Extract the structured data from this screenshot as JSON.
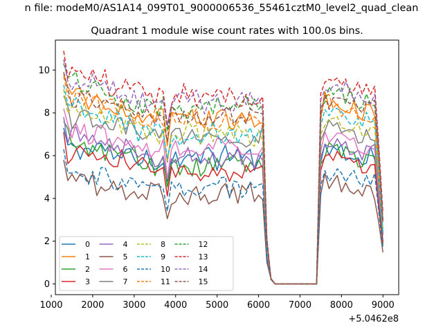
{
  "figure": {
    "suptitle": "n file: modeM0/AS1A14_099T01_9000006536_55461cztM0_level2_quad_clean",
    "offset_label": "+5.0462e8"
  },
  "chart_data": {
    "type": "line",
    "title": "Quadrant 1 module wise count rates with 100.0s bins.",
    "xlabel": "",
    "ylabel": "",
    "xlim": [
      1100,
      9380
    ],
    "ylim": [
      -0.5,
      11.4
    ],
    "x_offset": 504620000,
    "xticks": [
      1000,
      2000,
      3000,
      4000,
      5000,
      6000,
      7000,
      8000,
      9000
    ],
    "yticks": [
      0,
      2,
      4,
      6,
      8,
      10
    ],
    "xtick_labels": [
      "1000",
      "2000",
      "3000",
      "4000",
      "5000",
      "6000",
      "7000",
      "8000",
      "9000"
    ],
    "ytick_labels": [
      "0",
      "2",
      "4",
      "6",
      "8",
      "10"
    ],
    "grid": false,
    "legend": {
      "placement": "lower-left",
      "columns": 4
    },
    "series": [
      {
        "name": "0",
        "color": "#1f77b4",
        "dash": "solid",
        "level_start": 6.4,
        "level_mid": 5.9,
        "level_end": 6.0
      },
      {
        "name": "1",
        "color": "#ff7f0e",
        "dash": "solid",
        "level_start": 8.9,
        "level_mid": 7.7,
        "level_end": 8.1
      },
      {
        "name": "2",
        "color": "#2ca02c",
        "dash": "solid",
        "level_start": 6.7,
        "level_mid": 5.6,
        "level_end": 5.9
      },
      {
        "name": "3",
        "color": "#d62728",
        "dash": "solid",
        "level_start": 6.2,
        "level_mid": 5.3,
        "level_end": 5.6
      },
      {
        "name": "4",
        "color": "#9467bd",
        "dash": "solid",
        "level_start": 6.9,
        "level_mid": 6.0,
        "level_end": 6.2
      },
      {
        "name": "5",
        "color": "#8c564b",
        "dash": "solid",
        "level_start": 4.9,
        "level_mid": 4.2,
        "level_end": 4.5
      },
      {
        "name": "6",
        "color": "#e377c2",
        "dash": "solid",
        "level_start": 7.3,
        "level_mid": 6.2,
        "level_end": 6.5
      },
      {
        "name": "7",
        "color": "#7f7f7f",
        "dash": "solid",
        "level_start": 7.9,
        "level_mid": 6.8,
        "level_end": 7.0
      },
      {
        "name": "8",
        "color": "#bcbd22",
        "dash": "dashed",
        "level_start": 8.2,
        "level_mid": 7.0,
        "level_end": 7.3
      },
      {
        "name": "9",
        "color": "#17becf",
        "dash": "dashed",
        "level_start": 8.4,
        "level_mid": 7.0,
        "level_end": 7.7
      },
      {
        "name": "10",
        "color": "#1f77b4",
        "dash": "dashed",
        "level_start": 5.4,
        "level_mid": 4.6,
        "level_end": 4.9
      },
      {
        "name": "11",
        "color": "#ff7f0e",
        "dash": "dashed",
        "level_start": 8.8,
        "level_mid": 7.7,
        "level_end": 8.0
      },
      {
        "name": "12",
        "color": "#2ca02c",
        "dash": "dashed",
        "level_start": 9.4,
        "level_mid": 8.3,
        "level_end": 8.6
      },
      {
        "name": "13",
        "color": "#d62728",
        "dash": "dashed",
        "level_start": 10.0,
        "level_mid": 8.7,
        "level_end": 9.2
      },
      {
        "name": "14",
        "color": "#9467bd",
        "dash": "dashed",
        "level_start": 9.6,
        "level_mid": 8.5,
        "level_end": 8.9
      },
      {
        "name": "15",
        "color": "#8c564b",
        "dash": "dashed",
        "level_start": 9.0,
        "level_mid": 7.9,
        "level_end": 8.3
      }
    ],
    "segments": {
      "first_on": [
        1300,
        6150
      ],
      "drop": [
        6200,
        6300
      ],
      "off": [
        6400,
        7400
      ],
      "second_on": [
        7500,
        8800
      ],
      "tail_end": 9000,
      "dip_at": 3800,
      "bin": 100
    }
  }
}
